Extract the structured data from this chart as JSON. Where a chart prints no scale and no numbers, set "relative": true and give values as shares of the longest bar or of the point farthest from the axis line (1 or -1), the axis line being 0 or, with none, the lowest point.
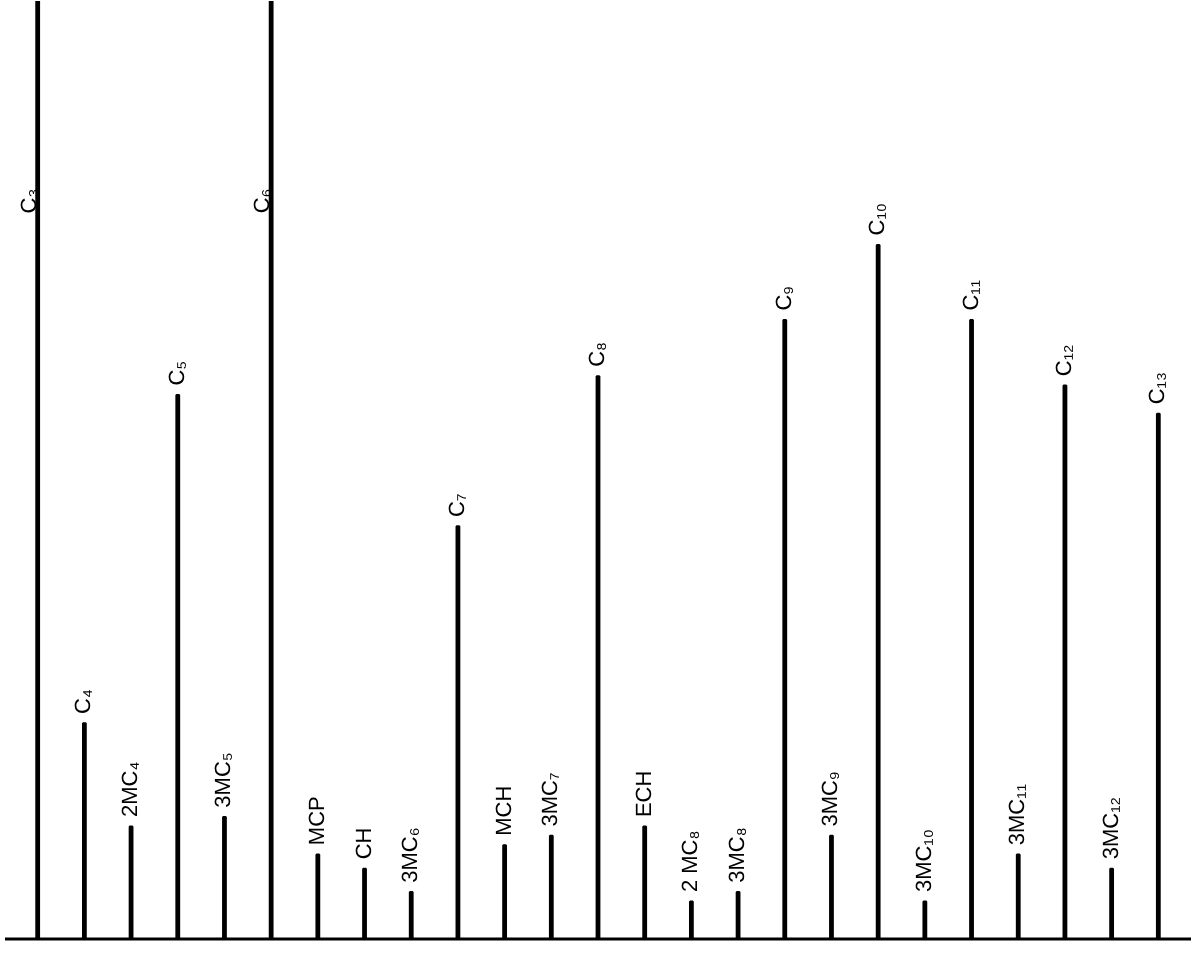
{
  "chart_data": {
    "type": "bar",
    "relative": true,
    "categories": [
      "C₃",
      "C₄",
      "2MC₄",
      "C₅",
      "3MC₅",
      "C₆",
      "MCP",
      "CH",
      "3MC₆",
      "C₇",
      "MCH",
      "3MC₇",
      "C₈",
      "ECH",
      "2 MC₈",
      "3MC₈",
      "C₉",
      "3MC₉",
      "C₁₀",
      "3MC₁₀",
      "C₁₁",
      "3MC₁₁",
      "C₁₂",
      "3MC₁₂",
      "C₁₃"
    ],
    "series": [
      {
        "color": "#000000",
        "values": [
          1.0,
          0.23,
          0.12,
          0.58,
          0.13,
          1.0,
          0.09,
          0.075,
          0.05,
          0.44,
          0.1,
          0.11,
          0.6,
          0.12,
          0.04,
          0.05,
          0.66,
          0.11,
          0.74,
          0.04,
          0.66,
          0.09,
          0.59,
          0.075,
          0.56
        ]
      }
    ]
  }
}
